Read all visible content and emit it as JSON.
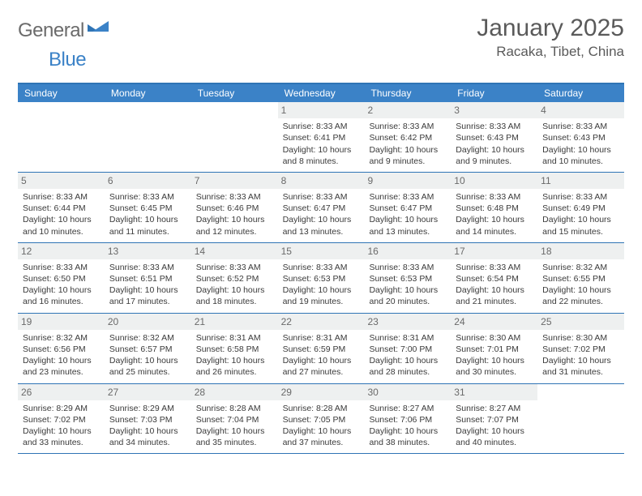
{
  "logo": {
    "general": "General",
    "blue": "Blue"
  },
  "title": "January 2025",
  "location": "Racaka, Tibet, China",
  "colors": {
    "header_bg": "#3b82c7",
    "border": "#2f74b5",
    "daynum_bg": "#eef0f0",
    "text": "#3a3a3a",
    "logo_gray": "#6b6b6b",
    "logo_blue": "#3b82c7"
  },
  "weekdays": [
    "Sunday",
    "Monday",
    "Tuesday",
    "Wednesday",
    "Thursday",
    "Friday",
    "Saturday"
  ],
  "weeks": [
    [
      {
        "n": "",
        "sunrise": "",
        "sunset": "",
        "daylight": ""
      },
      {
        "n": "",
        "sunrise": "",
        "sunset": "",
        "daylight": ""
      },
      {
        "n": "",
        "sunrise": "",
        "sunset": "",
        "daylight": ""
      },
      {
        "n": "1",
        "sunrise": "Sunrise: 8:33 AM",
        "sunset": "Sunset: 6:41 PM",
        "daylight": "Daylight: 10 hours and 8 minutes."
      },
      {
        "n": "2",
        "sunrise": "Sunrise: 8:33 AM",
        "sunset": "Sunset: 6:42 PM",
        "daylight": "Daylight: 10 hours and 9 minutes."
      },
      {
        "n": "3",
        "sunrise": "Sunrise: 8:33 AM",
        "sunset": "Sunset: 6:43 PM",
        "daylight": "Daylight: 10 hours and 9 minutes."
      },
      {
        "n": "4",
        "sunrise": "Sunrise: 8:33 AM",
        "sunset": "Sunset: 6:43 PM",
        "daylight": "Daylight: 10 hours and 10 minutes."
      }
    ],
    [
      {
        "n": "5",
        "sunrise": "Sunrise: 8:33 AM",
        "sunset": "Sunset: 6:44 PM",
        "daylight": "Daylight: 10 hours and 10 minutes."
      },
      {
        "n": "6",
        "sunrise": "Sunrise: 8:33 AM",
        "sunset": "Sunset: 6:45 PM",
        "daylight": "Daylight: 10 hours and 11 minutes."
      },
      {
        "n": "7",
        "sunrise": "Sunrise: 8:33 AM",
        "sunset": "Sunset: 6:46 PM",
        "daylight": "Daylight: 10 hours and 12 minutes."
      },
      {
        "n": "8",
        "sunrise": "Sunrise: 8:33 AM",
        "sunset": "Sunset: 6:47 PM",
        "daylight": "Daylight: 10 hours and 13 minutes."
      },
      {
        "n": "9",
        "sunrise": "Sunrise: 8:33 AM",
        "sunset": "Sunset: 6:47 PM",
        "daylight": "Daylight: 10 hours and 13 minutes."
      },
      {
        "n": "10",
        "sunrise": "Sunrise: 8:33 AM",
        "sunset": "Sunset: 6:48 PM",
        "daylight": "Daylight: 10 hours and 14 minutes."
      },
      {
        "n": "11",
        "sunrise": "Sunrise: 8:33 AM",
        "sunset": "Sunset: 6:49 PM",
        "daylight": "Daylight: 10 hours and 15 minutes."
      }
    ],
    [
      {
        "n": "12",
        "sunrise": "Sunrise: 8:33 AM",
        "sunset": "Sunset: 6:50 PM",
        "daylight": "Daylight: 10 hours and 16 minutes."
      },
      {
        "n": "13",
        "sunrise": "Sunrise: 8:33 AM",
        "sunset": "Sunset: 6:51 PM",
        "daylight": "Daylight: 10 hours and 17 minutes."
      },
      {
        "n": "14",
        "sunrise": "Sunrise: 8:33 AM",
        "sunset": "Sunset: 6:52 PM",
        "daylight": "Daylight: 10 hours and 18 minutes."
      },
      {
        "n": "15",
        "sunrise": "Sunrise: 8:33 AM",
        "sunset": "Sunset: 6:53 PM",
        "daylight": "Daylight: 10 hours and 19 minutes."
      },
      {
        "n": "16",
        "sunrise": "Sunrise: 8:33 AM",
        "sunset": "Sunset: 6:53 PM",
        "daylight": "Daylight: 10 hours and 20 minutes."
      },
      {
        "n": "17",
        "sunrise": "Sunrise: 8:33 AM",
        "sunset": "Sunset: 6:54 PM",
        "daylight": "Daylight: 10 hours and 21 minutes."
      },
      {
        "n": "18",
        "sunrise": "Sunrise: 8:32 AM",
        "sunset": "Sunset: 6:55 PM",
        "daylight": "Daylight: 10 hours and 22 minutes."
      }
    ],
    [
      {
        "n": "19",
        "sunrise": "Sunrise: 8:32 AM",
        "sunset": "Sunset: 6:56 PM",
        "daylight": "Daylight: 10 hours and 23 minutes."
      },
      {
        "n": "20",
        "sunrise": "Sunrise: 8:32 AM",
        "sunset": "Sunset: 6:57 PM",
        "daylight": "Daylight: 10 hours and 25 minutes."
      },
      {
        "n": "21",
        "sunrise": "Sunrise: 8:31 AM",
        "sunset": "Sunset: 6:58 PM",
        "daylight": "Daylight: 10 hours and 26 minutes."
      },
      {
        "n": "22",
        "sunrise": "Sunrise: 8:31 AM",
        "sunset": "Sunset: 6:59 PM",
        "daylight": "Daylight: 10 hours and 27 minutes."
      },
      {
        "n": "23",
        "sunrise": "Sunrise: 8:31 AM",
        "sunset": "Sunset: 7:00 PM",
        "daylight": "Daylight: 10 hours and 28 minutes."
      },
      {
        "n": "24",
        "sunrise": "Sunrise: 8:30 AM",
        "sunset": "Sunset: 7:01 PM",
        "daylight": "Daylight: 10 hours and 30 minutes."
      },
      {
        "n": "25",
        "sunrise": "Sunrise: 8:30 AM",
        "sunset": "Sunset: 7:02 PM",
        "daylight": "Daylight: 10 hours and 31 minutes."
      }
    ],
    [
      {
        "n": "26",
        "sunrise": "Sunrise: 8:29 AM",
        "sunset": "Sunset: 7:02 PM",
        "daylight": "Daylight: 10 hours and 33 minutes."
      },
      {
        "n": "27",
        "sunrise": "Sunrise: 8:29 AM",
        "sunset": "Sunset: 7:03 PM",
        "daylight": "Daylight: 10 hours and 34 minutes."
      },
      {
        "n": "28",
        "sunrise": "Sunrise: 8:28 AM",
        "sunset": "Sunset: 7:04 PM",
        "daylight": "Daylight: 10 hours and 35 minutes."
      },
      {
        "n": "29",
        "sunrise": "Sunrise: 8:28 AM",
        "sunset": "Sunset: 7:05 PM",
        "daylight": "Daylight: 10 hours and 37 minutes."
      },
      {
        "n": "30",
        "sunrise": "Sunrise: 8:27 AM",
        "sunset": "Sunset: 7:06 PM",
        "daylight": "Daylight: 10 hours and 38 minutes."
      },
      {
        "n": "31",
        "sunrise": "Sunrise: 8:27 AM",
        "sunset": "Sunset: 7:07 PM",
        "daylight": "Daylight: 10 hours and 40 minutes."
      },
      {
        "n": "",
        "sunrise": "",
        "sunset": "",
        "daylight": ""
      }
    ]
  ]
}
